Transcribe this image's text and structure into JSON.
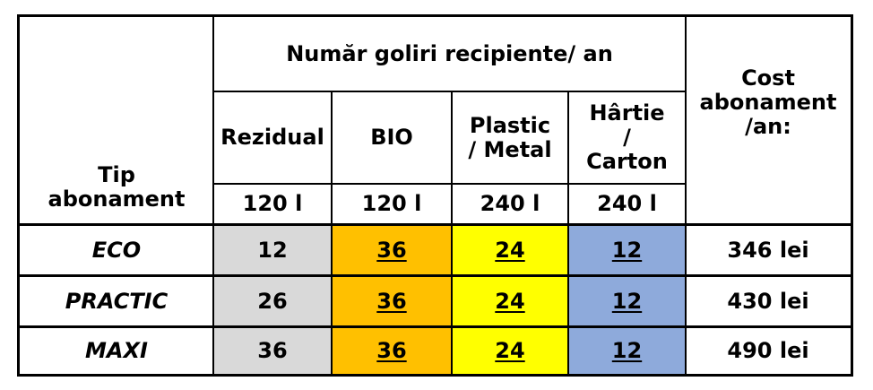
{
  "header": {
    "group_title": "Număr goliri recipiente/ an",
    "tip_line1": "Tip",
    "tip_line2": "abonament",
    "cost_line1": "Cost",
    "cost_line2": "abonament",
    "cost_line3": "/an:"
  },
  "columns": [
    {
      "label_lines": [
        "Rezidual"
      ],
      "volume": "120 l",
      "color": "#d9d9d9"
    },
    {
      "label_lines": [
        "BIO"
      ],
      "volume": "120 l",
      "color": "#ffc000"
    },
    {
      "label_lines": [
        "Plastic",
        "/ Metal"
      ],
      "volume": "240 l",
      "color": "#ffff00"
    },
    {
      "label_lines": [
        "Hârtie",
        "/",
        "Carton"
      ],
      "volume": "240 l",
      "color": "#8eaadb"
    }
  ],
  "rows": [
    {
      "name": "ECO",
      "values": [
        "12",
        "36",
        "24",
        "12"
      ],
      "cost": "346 lei"
    },
    {
      "name": "PRACTIC",
      "values": [
        "26",
        "36",
        "24",
        "12"
      ],
      "cost": "430 lei"
    },
    {
      "name": "MAXI",
      "values": [
        "36",
        "36",
        "24",
        "12"
      ],
      "cost": "490 lei"
    }
  ]
}
